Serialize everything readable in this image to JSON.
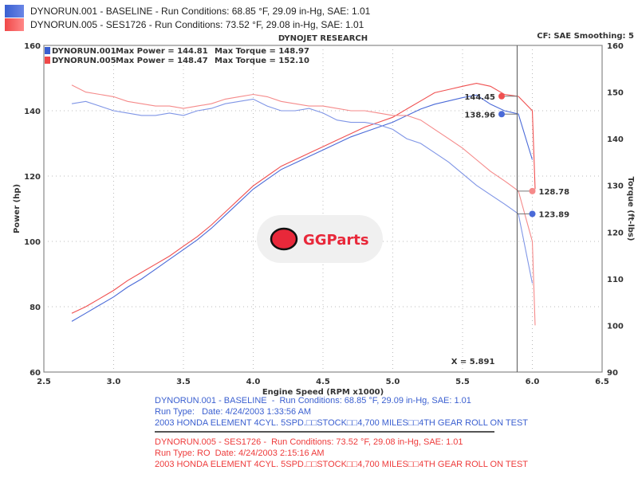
{
  "header": {
    "legend": [
      {
        "label": "DYNORUN.001 - BASELINE  -  Run Conditions: 68.85 °F, 29.09 in-Hg, SAE: 1.01",
        "color": "#3a5fd0"
      },
      {
        "label": "DYNORUN.005 - SES1726 -  Run Conditions: 73.52 °F, 29.08 in-Hg, SAE: 1.01",
        "color": "#f04848"
      }
    ]
  },
  "watermark": {
    "text": "GGParts"
  },
  "chart_data": {
    "type": "line",
    "title": "DYNOJET RESEARCH",
    "info": "CF: SAE  Smoothing: 5",
    "xlabel": "Engine Speed (RPM x1000)",
    "ylabel": "Power (hp)",
    "y2label": "Torque (ft-lbs)",
    "xlim": [
      2.5,
      6.5
    ],
    "ylim": [
      60,
      160
    ],
    "y2lim": [
      90,
      160
    ],
    "xticks": [
      "2.5",
      "3.0",
      "3.5",
      "4.0",
      "4.5",
      "5.0",
      "5.5",
      "6.0",
      "6.5"
    ],
    "yticks": [
      "60",
      "80",
      "100",
      "120",
      "140",
      "160"
    ],
    "y2ticks": [
      "90",
      "100",
      "110",
      "120",
      "130",
      "140",
      "150",
      "160"
    ],
    "grid": true,
    "summary": [
      {
        "run": "DYNORUN.001",
        "power": "Max Power = 144.81",
        "torque": "Max Torque = 148.97",
        "color": "#3a5fd0"
      },
      {
        "run": "DYNORUN.005",
        "power": "Max Power = 148.47",
        "torque": "Max Torque = 152.10",
        "color": "#f04848"
      }
    ],
    "cursor": {
      "x": 5.891,
      "label": "X = 5.891",
      "values": [
        {
          "series": "DYNORUN.005 Power",
          "value": 144.45,
          "label": "144.45"
        },
        {
          "series": "DYNORUN.001 Power",
          "value": 138.96,
          "label": "138.96"
        },
        {
          "series": "DYNORUN.005 Torque",
          "value": 128.78,
          "label": "128.78"
        },
        {
          "series": "DYNORUN.001 Torque",
          "value": 123.89,
          "label": "123.89"
        }
      ]
    },
    "series": [
      {
        "name": "DYNORUN.001 Power",
        "axis": "left",
        "color": "#4a6ad8",
        "x": [
          2.7,
          2.8,
          2.9,
          3.0,
          3.1,
          3.2,
          3.3,
          3.4,
          3.5,
          3.6,
          3.7,
          3.8,
          3.9,
          4.0,
          4.1,
          4.2,
          4.3,
          4.4,
          4.5,
          4.6,
          4.7,
          4.8,
          4.9,
          5.0,
          5.1,
          5.2,
          5.3,
          5.4,
          5.5,
          5.6,
          5.7,
          5.8,
          5.9,
          6.0
        ],
        "y": [
          75.5,
          78,
          80.5,
          83,
          86,
          88.5,
          91.5,
          94.5,
          97.5,
          100.5,
          104,
          108,
          112,
          116,
          119,
          122,
          124,
          126,
          128,
          130,
          132,
          133.5,
          135,
          136.5,
          138.5,
          140.5,
          142,
          143,
          144,
          144.8,
          142,
          140,
          139,
          125
        ]
      },
      {
        "name": "DYNORUN.005 Power",
        "axis": "left",
        "color": "#f05050",
        "x": [
          2.7,
          2.8,
          2.9,
          3.0,
          3.1,
          3.2,
          3.3,
          3.4,
          3.5,
          3.6,
          3.7,
          3.8,
          3.9,
          4.0,
          4.1,
          4.2,
          4.3,
          4.4,
          4.5,
          4.6,
          4.7,
          4.8,
          4.9,
          5.0,
          5.1,
          5.2,
          5.3,
          5.4,
          5.5,
          5.6,
          5.7,
          5.8,
          5.9,
          6.0,
          6.02
        ],
        "y": [
          78,
          80,
          82.5,
          85,
          88,
          90.5,
          93,
          95.5,
          98.5,
          101.5,
          105,
          109,
          113,
          117,
          120,
          123,
          125,
          127,
          129,
          131,
          133,
          135,
          136.5,
          138,
          140.5,
          143,
          145.5,
          146.5,
          147.5,
          148.4,
          147.5,
          145,
          144.4,
          140,
          116
        ]
      },
      {
        "name": "DYNORUN.001 Torque",
        "axis": "right",
        "color": "#7f95e6",
        "x": [
          2.7,
          2.8,
          2.9,
          3.0,
          3.1,
          3.2,
          3.3,
          3.4,
          3.5,
          3.6,
          3.7,
          3.8,
          3.9,
          4.0,
          4.1,
          4.2,
          4.3,
          4.4,
          4.5,
          4.6,
          4.7,
          4.8,
          4.9,
          5.0,
          5.1,
          5.2,
          5.3,
          5.4,
          5.5,
          5.6,
          5.7,
          5.8,
          5.9,
          6.0
        ],
        "y": [
          147.5,
          148,
          147,
          146,
          145.5,
          145,
          145,
          145.5,
          145,
          146,
          146.5,
          147.5,
          148,
          148.5,
          147,
          146,
          146,
          146.5,
          145.5,
          144,
          143.5,
          143.5,
          143,
          142,
          140,
          139,
          137,
          135,
          132.5,
          130,
          128,
          126,
          123.9,
          109
        ]
      },
      {
        "name": "DYNORUN.005 Torque",
        "axis": "right",
        "color": "#f58a8a",
        "x": [
          2.7,
          2.8,
          2.9,
          3.0,
          3.1,
          3.2,
          3.3,
          3.4,
          3.5,
          3.6,
          3.7,
          3.8,
          3.9,
          4.0,
          4.1,
          4.2,
          4.3,
          4.4,
          4.5,
          4.6,
          4.7,
          4.8,
          4.9,
          5.0,
          5.1,
          5.2,
          5.3,
          5.4,
          5.5,
          5.6,
          5.7,
          5.8,
          5.9,
          6.0,
          6.02
        ],
        "y": [
          151.5,
          150,
          149.5,
          149,
          148,
          147.5,
          147,
          147,
          146.5,
          147,
          147.5,
          148.5,
          149,
          149.5,
          149,
          148,
          147.5,
          147,
          147,
          146.5,
          146,
          146,
          145.5,
          145,
          145,
          144,
          142,
          140,
          138,
          135.5,
          133,
          131,
          128.8,
          118,
          100
        ]
      }
    ]
  },
  "footer": {
    "run1": [
      "DYNORUN.001 - BASELINE  -  Run Conditions: 68.85 °F, 29.09 in-Hg, SAE: 1.01",
      "Run Type:   Date: 4/24/2003 1:33:56 AM",
      "2003 HONDA ELEMENT 4CYL. 5SPD.□□STOCK□□4,700 MILES□□4TH GEAR ROLL ON TEST"
    ],
    "run2": [
      "DYNORUN.005 - SES1726 -  Run Conditions: 73.52 °F, 29.08 in-Hg, SAE: 1.01",
      "Run Type: RO  Date: 4/24/2003 2:15:16 AM",
      "2003 HONDA ELEMENT 4CYL. 5SPD.□□STOCK□□4,700 MILES□□4TH GEAR ROLL ON TEST"
    ]
  }
}
